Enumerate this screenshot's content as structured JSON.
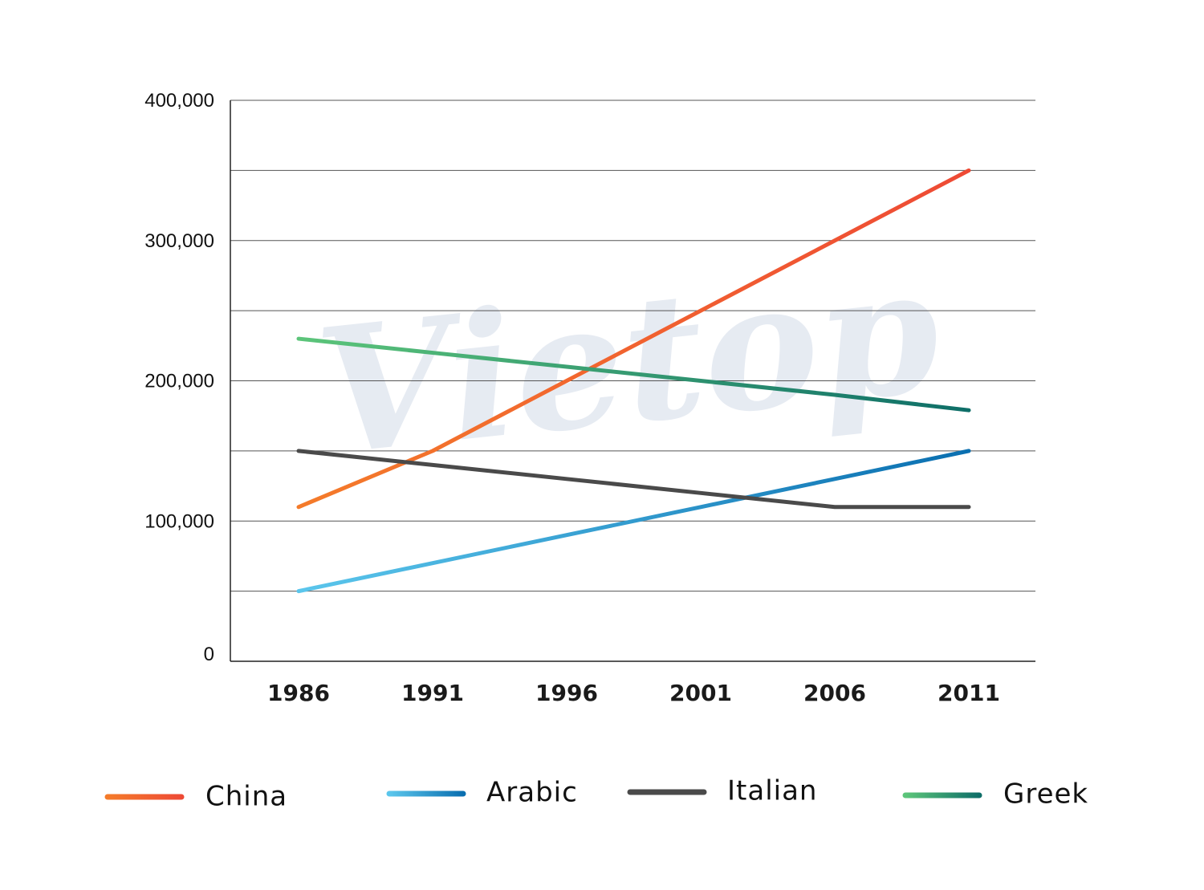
{
  "watermark": {
    "text": "Vietop",
    "color": "#c9d3e3"
  },
  "chart_data": {
    "type": "line",
    "x": [
      1986,
      1991,
      1996,
      2001,
      2006,
      2011
    ],
    "ylim": [
      0,
      400000
    ],
    "yticks": [
      0,
      100000,
      200000,
      300000,
      400000
    ],
    "ytick_labels": [
      "0",
      "100,000",
      "200,000",
      "300,000",
      "400,000"
    ],
    "xtick_labels": [
      "1986",
      "1991",
      "1996",
      "2001",
      "2006",
      "2011"
    ],
    "minor_gridlines": [
      50000,
      150000,
      250000,
      350000
    ],
    "grid": true,
    "legend_position": "bottom",
    "series": [
      {
        "name": "China",
        "values": [
          110000,
          150000,
          200000,
          250000,
          300000,
          350000
        ],
        "color_start": "#f47b2a",
        "color_end": "#ee4a35"
      },
      {
        "name": "Arabic",
        "values": [
          50000,
          70000,
          90000,
          110000,
          130000,
          150000
        ],
        "color_start": "#5bc6ec",
        "color_end": "#0a6fb0"
      },
      {
        "name": "Italian",
        "values": [
          150000,
          140000,
          130000,
          120000,
          110000,
          110000
        ],
        "color_start": "#4a4a4a",
        "color_end": "#4a4a4a"
      },
      {
        "name": "Greek",
        "values": [
          230000,
          220000,
          210000,
          200000,
          190000,
          179000
        ],
        "color_start": "#5cc57a",
        "color_end": "#0e6e68"
      }
    ]
  }
}
